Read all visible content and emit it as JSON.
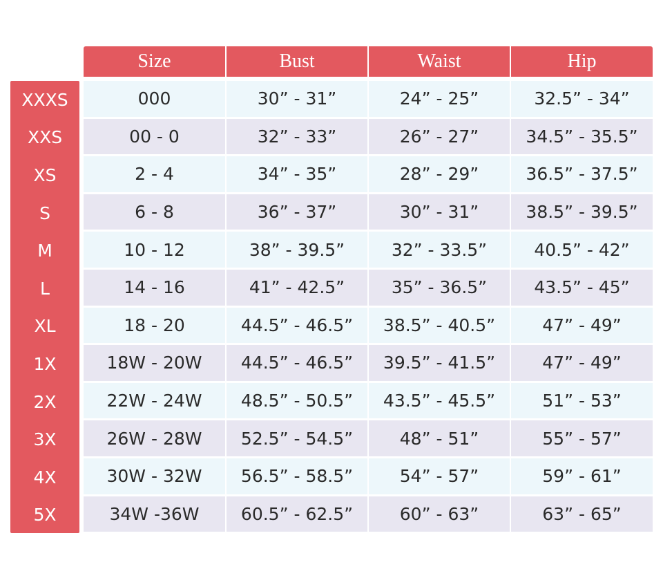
{
  "table": {
    "columns": [
      "Size",
      "Bust",
      "Waist",
      "Hip"
    ],
    "row_labels": [
      "XXXS",
      "XXS",
      "XS",
      "S",
      "M",
      "L",
      "XL",
      "1X",
      "2X",
      "3X",
      "4X",
      "5X"
    ],
    "rows": [
      [
        "000",
        "30” - 31”",
        "24” - 25”",
        "32.5” - 34”"
      ],
      [
        "00 - 0",
        "32” - 33”",
        "26” - 27”",
        "34.5” - 35.5”"
      ],
      [
        "2 - 4",
        "34” - 35”",
        "28” - 29”",
        "36.5” - 37.5”"
      ],
      [
        "6 - 8",
        "36” - 37”",
        "30” - 31”",
        "38.5” - 39.5”"
      ],
      [
        "10 - 12",
        "38” - 39.5”",
        "32” - 33.5”",
        "40.5” - 42”"
      ],
      [
        "14 - 16",
        "41” - 42.5”",
        "35” - 36.5”",
        "43.5” - 45”"
      ],
      [
        "18 - 20",
        "44.5” - 46.5”",
        "38.5” - 40.5”",
        "47” - 49”"
      ],
      [
        "18W - 20W",
        "44.5” - 46.5”",
        "39.5” - 41.5”",
        "47” - 49”"
      ],
      [
        "22W - 24W",
        "48.5” - 50.5”",
        "43.5” - 45.5”",
        "51” - 53”"
      ],
      [
        "26W - 28W",
        "52.5” - 54.5”",
        "48” - 51”",
        "55” - 57”"
      ],
      [
        "30W - 32W",
        "56.5” - 58.5”",
        "54” - 57”",
        "59” - 61”"
      ],
      [
        "34W -36W",
        "60.5” - 62.5”",
        "60” - 63”",
        "63” - 65”"
      ]
    ]
  }
}
